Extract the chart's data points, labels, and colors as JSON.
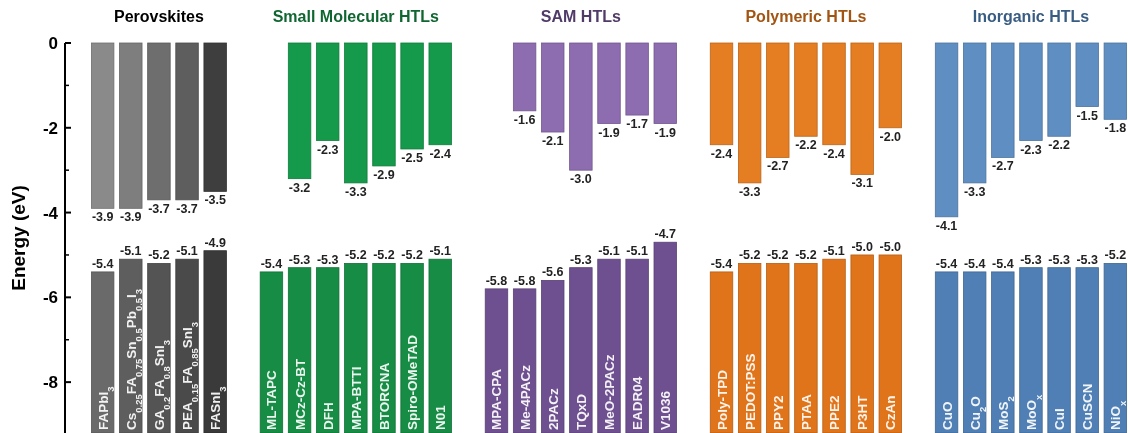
{
  "chart_data": {
    "type": "bar",
    "ylabel": "Energy (eV)",
    "ylim": [
      -9.2,
      0
    ],
    "yticks": [
      0,
      -2,
      -4,
      -6,
      -8
    ],
    "annotations": [
      "Perovskites",
      "Small Molecular HTLs",
      "SAM HTLs",
      "Polymeric HTLs",
      "Inorganic HTLs"
    ],
    "categories": [
      "FAPbI$_{3}$",
      "Cs$_{0.25}$FA$_{0.75}$Sn$_{0.5}$Pb$_{0.5}$I$_{3}$",
      "GA$_{0.2}$FA$_{0.8}$SnI$_{3}$",
      "PEA$_{0.15}$FA$_{0.85}$SnI$_{3}$",
      "FASnI$_{3}$",
      null,
      "ML-TAPC",
      "MCz-Cz-BT",
      "DFH",
      "MPA-BTTI",
      "BTORCNA",
      "Spiro-OMeTAD",
      "N01",
      null,
      "MPA-CPA",
      "Me-4PACz",
      "2PACz",
      "TQxD",
      "MeO-2PACz",
      "EADR04",
      "V1036",
      null,
      "Poly-TPD",
      "PEDOT:PSS",
      "PPY2",
      "PTAA",
      "PPE2",
      "P3HT",
      "CzAn",
      null,
      "CuO",
      "Cu$_{2}$O",
      "MoS$_{2}$",
      "MoO$_{x}$",
      "CuI",
      "CuSCN",
      "NiO$_{x}$"
    ],
    "series": [
      {
        "colors": [
          "#8a8a8a",
          "#7e7e7e",
          "#6e6e6e",
          "#5e5e5e",
          "#3e3e3e",
          null,
          null,
          "#15994a",
          "#15994a",
          "#15994a",
          "#15994a",
          "#15994a",
          "#15994a",
          null,
          null,
          "#8d6cb0",
          "#8d6cb0",
          "#8d6cb0",
          "#8d6cb0",
          "#8d6cb0",
          "#8d6cb0",
          null,
          "#e57d22",
          "#e57d22",
          "#e57d22",
          "#e57d22",
          "#e57d22",
          "#e57d22",
          "#e57d22",
          null,
          "#5f8fc2",
          "#5f8fc2",
          "#5f8fc2",
          "#5f8fc2",
          "#5f8fc2",
          "#5f8fc2",
          "#5f8fc2"
        ],
        "base": [
          0,
          0,
          0,
          0,
          0,
          null,
          null,
          0,
          0,
          0,
          0,
          0,
          0,
          null,
          null,
          0,
          0,
          0,
          0,
          0,
          0,
          null,
          0,
          0,
          0,
          0,
          0,
          0,
          0,
          null,
          0,
          0,
          0,
          0,
          0,
          0,
          0
        ],
        "values": [
          -3.9,
          -3.9,
          -3.7,
          -3.7,
          -3.5,
          null,
          null,
          -3.2,
          -2.3,
          -3.3,
          -2.9,
          -2.5,
          -2.4,
          null,
          null,
          -1.6,
          -2.1,
          -3.0,
          -1.9,
          -1.7,
          -1.9,
          null,
          -2.4,
          -3.3,
          -2.7,
          -2.2,
          -2.4,
          -3.1,
          -2.0,
          null,
          -4.1,
          -3.3,
          -2.7,
          -2.3,
          -2.2,
          -1.5,
          -1.8
        ],
        "value_labels": [
          "-3.9",
          "-3.9",
          "-3.7",
          "-3.7",
          "-3.5",
          null,
          null,
          "-3.2",
          "-2.3",
          "-3.3",
          "-2.9",
          "-2.5",
          "-2.4",
          null,
          null,
          "-1.6",
          "-2.1",
          "-3.0",
          "-1.9",
          "-1.7",
          "-1.9",
          null,
          "-2.4",
          "-3.3",
          "-2.7",
          "-2.2",
          "-2.4",
          "-3.1",
          "-2.0",
          null,
          "-4.1",
          "-3.3",
          "-2.7",
          "-2.3",
          "-2.2",
          "-1.5",
          "-1.8"
        ]
      },
      {
        "colors": [
          "#6a6a6a",
          "#5e5e5e",
          "#545454",
          "#4a4a4a",
          "#3a3a3a",
          null,
          "#168c44",
          "#168c44",
          "#168c44",
          "#168c44",
          "#168c44",
          "#168c44",
          "#168c44",
          null,
          "#6e5090",
          "#6e5090",
          "#6e5090",
          "#6e5090",
          "#6e5090",
          "#6e5090",
          "#6e5090",
          null,
          "#e0741a",
          "#e0741a",
          "#e0741a",
          "#e0741a",
          "#e0741a",
          "#e0741a",
          "#e0741a",
          null,
          "#4f7fb4",
          "#4f7fb4",
          "#4f7fb4",
          "#4f7fb4",
          "#4f7fb4",
          "#4f7fb4",
          "#4f7fb4"
        ],
        "base": [
          -9.2,
          -9.2,
          -9.2,
          -9.2,
          -9.2,
          null,
          -9.2,
          -9.2,
          -9.2,
          -9.2,
          -9.2,
          -9.2,
          -9.2,
          null,
          -9.2,
          -9.2,
          -9.2,
          -9.2,
          -9.2,
          -9.2,
          -9.2,
          null,
          -9.2,
          -9.2,
          -9.2,
          -9.2,
          -9.2,
          -9.2,
          -9.2,
          null,
          -9.2,
          -9.2,
          -9.2,
          -9.2,
          -9.2,
          -9.2,
          -9.2
        ],
        "values": [
          3.8,
          4.1,
          4.0,
          4.1,
          4.3,
          null,
          3.8,
          3.9,
          3.9,
          4.0,
          4.0,
          4.0,
          4.1,
          null,
          3.4,
          3.4,
          3.6,
          3.9,
          4.1,
          4.1,
          4.5,
          null,
          3.8,
          4.0,
          4.0,
          4.0,
          4.1,
          4.2,
          4.2,
          null,
          3.8,
          3.8,
          3.8,
          3.9,
          3.9,
          3.9,
          4.0
        ],
        "value_labels": [
          "-5.4",
          "-5.1",
          "-5.2",
          "-5.1",
          "-4.9",
          null,
          "-5.4",
          "-5.3",
          "-5.3",
          "-5.2",
          "-5.2",
          "-5.2",
          "-5.1",
          null,
          "-5.8",
          "-5.8",
          "-5.6",
          "-5.3",
          "-5.1",
          "-5.1",
          "-4.7",
          null,
          "-5.4",
          "-5.2",
          "-5.2",
          "-5.2",
          "-5.1",
          "-5.0",
          "-5.0",
          null,
          "-5.4",
          "-5.4",
          "-5.4",
          "-5.3",
          "-5.3",
          "-5.3",
          "-5.2"
        ]
      }
    ]
  }
}
